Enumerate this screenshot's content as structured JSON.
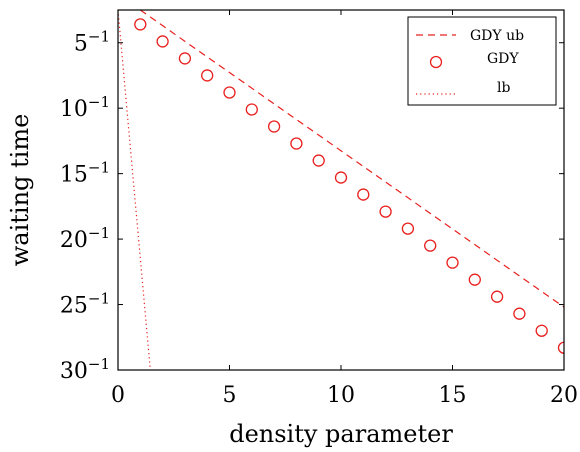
{
  "chart_data": {
    "type": "line",
    "xlabel": "density parameter",
    "ylabel": "waiting time",
    "x_ticks": [
      0,
      5,
      10,
      15,
      20
    ],
    "y_ticks": [
      {
        "base": "5",
        "exp": "−1"
      },
      {
        "base": "10",
        "exp": "−1"
      },
      {
        "base": "15",
        "exp": "−1"
      },
      {
        "base": "20",
        "exp": "−1"
      },
      {
        "base": "25",
        "exp": "−1"
      },
      {
        "base": "30",
        "exp": "−1"
      }
    ],
    "y_scale": "reciprocal",
    "xlim": [
      0,
      20
    ],
    "ylim_inverse": [
      2.5,
      30
    ],
    "legend_position": "top-right",
    "grid": false,
    "series": [
      {
        "name": "GDY ub",
        "style": "dashed",
        "color": "#e8211f",
        "x": [
          1,
          20
        ],
        "y_inverse": [
          2.5,
          25.2
        ]
      },
      {
        "name": "GDY",
        "style": "markers",
        "marker": "circle",
        "color": "#e8211f",
        "x": [
          1,
          2,
          3,
          4,
          5,
          6,
          7,
          8,
          9,
          10,
          11,
          12,
          13,
          14,
          15,
          16,
          17,
          18,
          19,
          20
        ],
        "y_inverse": [
          3.6,
          4.9,
          6.2,
          7.5,
          8.8,
          10.1,
          11.4,
          12.7,
          14.0,
          15.3,
          16.6,
          17.9,
          19.2,
          20.5,
          21.8,
          23.1,
          24.4,
          25.7,
          27.0,
          28.3
        ]
      },
      {
        "name": "lb",
        "style": "dotted",
        "color": "#e8211f",
        "x": [
          0,
          1.45
        ],
        "y_inverse": [
          2.5,
          30
        ]
      }
    ]
  }
}
